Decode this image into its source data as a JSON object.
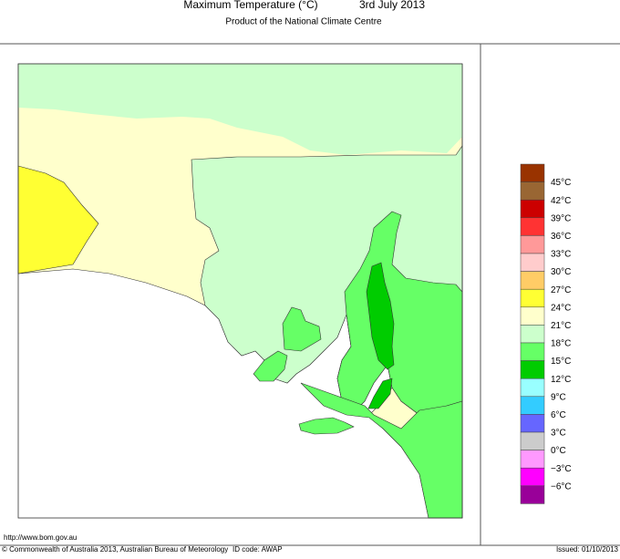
{
  "header": {
    "title": "Maximum Temperature (°C)",
    "date": "3rd July 2013",
    "subtitle": "Product of the National Climate Centre"
  },
  "legend": {
    "colors": [
      "#993300",
      "#996633",
      "#cc0000",
      "#ff3333",
      "#ff9999",
      "#ffcccc",
      "#ffcc66",
      "#ffff33",
      "#ffffcc",
      "#ccffcc",
      "#66ff66",
      "#00cc00",
      "#99ffff",
      "#33ccff",
      "#6666ff",
      "#cccccc",
      "#ff99ff",
      "#ff00ff",
      "#990099"
    ],
    "labels": [
      "45°C",
      "42°C",
      "39°C",
      "36°C",
      "33°C",
      "30°C",
      "27°C",
      "24°C",
      "21°C",
      "18°C",
      "15°C",
      "12°C",
      "9°C",
      "6°C",
      "3°C",
      "0°C",
      "−3°C",
      "−6°C"
    ]
  },
  "footer": {
    "url": "http://www.bom.gov.au",
    "copyright": "© Commonwealth of Australia 2013, Australian Bureau of Meteorology",
    "id_code": "ID code: AWAP",
    "issued": "Issued: 01/10/2013"
  }
}
